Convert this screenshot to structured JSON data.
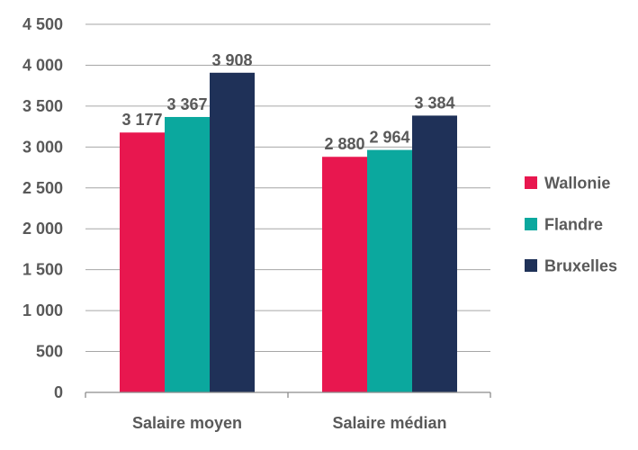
{
  "chart_data": {
    "type": "bar",
    "categories": [
      "Salaire moyen",
      "Salaire médian"
    ],
    "series": [
      {
        "name": "Wallonie",
        "values": [
          3177,
          2880
        ],
        "labels": [
          "3 177",
          "2 880"
        ],
        "color": "#e8174f"
      },
      {
        "name": "Flandre",
        "values": [
          3367,
          2964
        ],
        "labels": [
          "3 367",
          "2 964"
        ],
        "color": "#0ba89e"
      },
      {
        "name": "Bruxelles",
        "values": [
          3908,
          3384
        ],
        "labels": [
          "3 908",
          "3 384"
        ],
        "color": "#1f3158"
      }
    ],
    "ylim": [
      0,
      4500
    ],
    "yticks": [
      {
        "value": 0,
        "label": "0"
      },
      {
        "value": 500,
        "label": "500"
      },
      {
        "value": 1000,
        "label": "1 000"
      },
      {
        "value": 1500,
        "label": "1 500"
      },
      {
        "value": 2000,
        "label": "2 000"
      },
      {
        "value": 2500,
        "label": "2 500"
      },
      {
        "value": 3000,
        "label": "3 000"
      },
      {
        "value": 3500,
        "label": "3 500"
      },
      {
        "value": 4000,
        "label": "4 000"
      },
      {
        "value": 4500,
        "label": "4 500"
      }
    ],
    "grid": true,
    "legend_position": "right"
  }
}
